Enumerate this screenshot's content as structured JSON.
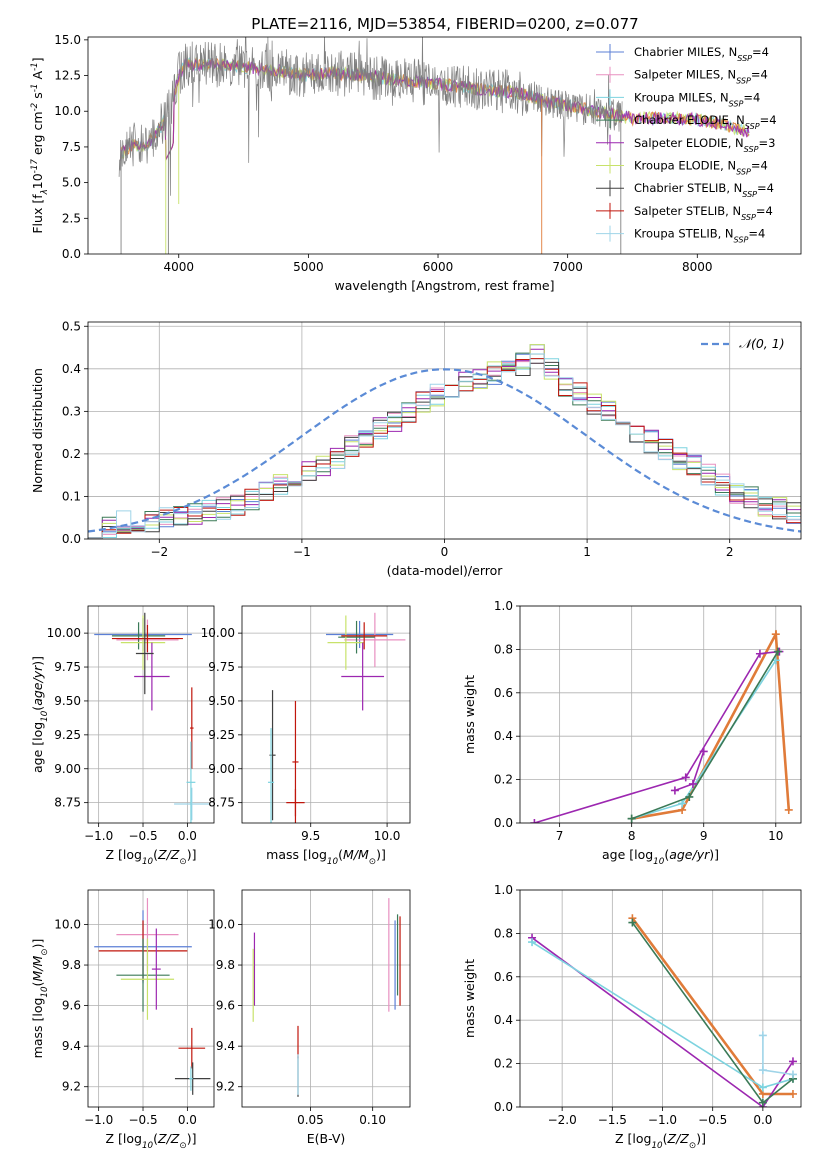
{
  "figure": {
    "title": "PLATE=2116, MJD=53854, FIBERID=0200, z=0.077"
  },
  "colors": {
    "model_series": [
      "#5b7fd6",
      "#e890c0",
      "#7dd3df",
      "#3b7a57",
      "#9c27b0",
      "#c8e26a",
      "#404040",
      "#c0160c",
      "#9fd4e8"
    ],
    "data_spectrum": "#808080",
    "fit_highlight": "#e07b39",
    "gaussian": "#5b8bd6",
    "weights_series": [
      "#e07b39",
      "#9c27b0",
      "#c8e26a",
      "#7dd3df",
      "#3b7a57"
    ]
  },
  "chart_data": [
    {
      "id": "spectrum",
      "type": "line",
      "xlabel": "wavelength [Angstrom, rest frame]",
      "ylabel": "Flux [f$_\\lambda$10$^{-17}$ erg cm$^{-2}$ s$^{-1}$ A$^{-1}$]",
      "xlim": [
        3300,
        8800
      ],
      "ylim": [
        0,
        15.2
      ],
      "xticks": [
        4000,
        5000,
        6000,
        7000,
        8000
      ],
      "yticks": [
        0.0,
        2.5,
        5.0,
        7.5,
        10.0,
        12.5,
        15.0
      ],
      "ytick_labels": [
        "0.0",
        "2.5",
        "5.0",
        "7.5",
        "10.0",
        "12.5",
        "15.0"
      ],
      "grid": false,
      "legend_position": "top-right",
      "legend": [
        {
          "text": "Chabrier MILES, N",
          "sub": "SSP",
          "tail": "=4"
        },
        {
          "text": "Salpeter MILES, N",
          "sub": "SSP",
          "tail": "=4"
        },
        {
          "text": "Kroupa MILES, N",
          "sub": "SSP",
          "tail": "=4"
        },
        {
          "text": "Chabrier ELODIE, N",
          "sub": "SSP",
          "tail": "=4"
        },
        {
          "text": "Salpeter ELODIE, N",
          "sub": "SSP",
          "tail": "=3"
        },
        {
          "text": "Kroupa ELODIE, N",
          "sub": "SSP",
          "tail": "=4"
        },
        {
          "text": "Chabrier STELIB, N",
          "sub": "SSP",
          "tail": "=4"
        },
        {
          "text": "Salpeter STELIB, N",
          "sub": "SSP",
          "tail": "=4"
        },
        {
          "text": "Kroupa STELIB, N",
          "sub": "SSP",
          "tail": "=4"
        }
      ],
      "continuum": [
        [
          3550,
          7.0
        ],
        [
          3650,
          7.6
        ],
        [
          3750,
          7.6
        ],
        [
          3850,
          8.7
        ],
        [
          3950,
          10.5
        ],
        [
          4000,
          12.5
        ],
        [
          4050,
          13.3
        ],
        [
          4200,
          13.3
        ],
        [
          4500,
          13.1
        ],
        [
          4800,
          12.8
        ],
        [
          5000,
          12.5
        ],
        [
          5200,
          12.7
        ],
        [
          5500,
          12.4
        ],
        [
          5800,
          12.1
        ],
        [
          6000,
          11.9
        ],
        [
          6300,
          11.6
        ],
        [
          6600,
          11.3
        ],
        [
          6900,
          10.6
        ],
        [
          7200,
          10.0
        ],
        [
          7500,
          9.5
        ],
        [
          7800,
          9.5
        ],
        [
          8000,
          9.4
        ],
        [
          8200,
          9.1
        ],
        [
          8400,
          8.5
        ]
      ]
    },
    {
      "id": "residuals",
      "type": "line",
      "xlabel": "(data-model)/error",
      "ylabel": "Normed distribution",
      "xlim": [
        -2.5,
        2.5
      ],
      "ylim": [
        0,
        0.51
      ],
      "xticks": [
        -2,
        -1,
        0,
        1,
        2
      ],
      "xtick_labels": [
        "−2",
        "−1",
        "0",
        "1",
        "2"
      ],
      "yticks": [
        0.0,
        0.1,
        0.2,
        0.3,
        0.4,
        0.5
      ],
      "ytick_labels": [
        "0.0",
        "0.1",
        "0.2",
        "0.3",
        "0.4",
        "0.5"
      ],
      "grid": true,
      "legend_position": "top-right",
      "gaussian_label": "𝒩(0, 1)",
      "bin_width": 0.1,
      "bin_start": -2.5,
      "hist_base": [
        0.03,
        0.03,
        0.04,
        0.04,
        0.04,
        0.05,
        0.05,
        0.06,
        0.07,
        0.07,
        0.08,
        0.09,
        0.11,
        0.13,
        0.14,
        0.16,
        0.17,
        0.19,
        0.22,
        0.24,
        0.26,
        0.28,
        0.3,
        0.32,
        0.34,
        0.35,
        0.37,
        0.38,
        0.39,
        0.4,
        0.41,
        0.43,
        0.4,
        0.36,
        0.34,
        0.32,
        0.3,
        0.28,
        0.25,
        0.23,
        0.21,
        0.19,
        0.17,
        0.15,
        0.13,
        0.11,
        0.1,
        0.08,
        0.07,
        0.06,
        0.05,
        0.05,
        0.04,
        0.04,
        0.04,
        0.04
      ]
    },
    {
      "id": "age-vs-Z",
      "type": "scatter",
      "xlabel": "Z [log$_{10}$($Z/Z_\\odot$)]",
      "ylabel": "age  [log$_{10}$($age/yr$)]",
      "xlim": [
        -1.12,
        0.3
      ],
      "ylim": [
        8.6,
        10.2
      ],
      "xticks": [
        -1.0,
        -0.5,
        0.0
      ],
      "xtick_labels": [
        "−1.0",
        "−0.5",
        "0.0"
      ],
      "yticks": [
        8.75,
        9.0,
        9.25,
        9.5,
        9.75,
        10.0
      ],
      "ytick_labels": [
        "8.75",
        "9.00",
        "9.25",
        "9.50",
        "9.75",
        "10.00"
      ],
      "grid": true,
      "points": [
        {
          "x": -0.5,
          "y": 9.99,
          "xerr": 0.55,
          "yerr": 0.12,
          "c": 0
        },
        {
          "x": -0.45,
          "y": 9.95,
          "xerr": 0.35,
          "yerr": 0.15,
          "c": 1
        },
        {
          "x": -0.55,
          "y": 9.98,
          "xerr": 0.3,
          "yerr": 0.1,
          "c": 3
        },
        {
          "x": -0.5,
          "y": 9.93,
          "xerr": 0.25,
          "yerr": 0.2,
          "c": 5
        },
        {
          "x": -0.45,
          "y": 9.96,
          "xerr": 0.4,
          "yerr": 0.1,
          "c": 7
        },
        {
          "x": -0.4,
          "y": 9.68,
          "xerr": 0.2,
          "yerr": 0.25,
          "c": 4
        },
        {
          "x": -0.48,
          "y": 9.85,
          "xerr": 0.1,
          "yerr": 0.3,
          "c": 6
        },
        {
          "x": 0.05,
          "y": 9.3,
          "xerr": 0.02,
          "yerr": 0.3,
          "c": 7
        },
        {
          "x": 0.05,
          "y": 8.74,
          "xerr": 0.2,
          "yerr": 0.12,
          "c": 8
        },
        {
          "x": 0.04,
          "y": 8.9,
          "xerr": 0.05,
          "yerr": 0.3,
          "c": 2
        }
      ]
    },
    {
      "id": "age-vs-mass",
      "type": "scatter",
      "xlabel": "mass [log$_{10}$($M/M_\\odot$)]",
      "xlim": [
        9.05,
        10.15
      ],
      "ylim": [
        8.6,
        10.2
      ],
      "xticks": [
        9.5,
        10.0
      ],
      "xtick_labels": [
        "9.5",
        "10.0"
      ],
      "yticks": [
        8.75,
        9.0,
        9.25,
        9.5,
        9.75,
        10.0
      ],
      "ytick_labels": [
        "8.75",
        "9.00",
        "9.25",
        "9.50",
        "9.75",
        "10.00"
      ],
      "grid": true,
      "points": [
        {
          "x": 9.82,
          "y": 9.99,
          "xerr": 0.22,
          "yerr": 0.1,
          "c": 0
        },
        {
          "x": 9.92,
          "y": 9.95,
          "xerr": 0.2,
          "yerr": 0.2,
          "c": 1
        },
        {
          "x": 9.8,
          "y": 9.97,
          "xerr": 0.12,
          "yerr": 0.12,
          "c": 3
        },
        {
          "x": 9.73,
          "y": 9.93,
          "xerr": 0.12,
          "yerr": 0.2,
          "c": 5
        },
        {
          "x": 9.85,
          "y": 9.98,
          "xerr": 0.15,
          "yerr": 0.1,
          "c": 7
        },
        {
          "x": 9.84,
          "y": 9.68,
          "xerr": 0.14,
          "yerr": 0.25,
          "c": 4
        },
        {
          "x": 9.25,
          "y": 9.1,
          "xerr": 0.02,
          "yerr": 0.48,
          "c": 6
        },
        {
          "x": 9.4,
          "y": 8.75,
          "xerr": 0.06,
          "yerr": 0.1,
          "c": 7
        },
        {
          "x": 9.4,
          "y": 9.05,
          "xerr": 0.02,
          "yerr": 0.45,
          "c": 7
        },
        {
          "x": 9.24,
          "y": 8.9,
          "xerr": 0.02,
          "yerr": 0.4,
          "c": 2
        }
      ]
    },
    {
      "id": "weights-vs-age",
      "type": "line",
      "xlabel": "age  [log$_{10}$($age/yr$)]",
      "ylabel": "mass weight",
      "xlim": [
        6.45,
        10.35
      ],
      "ylim": [
        0,
        1.0
      ],
      "xticks": [
        7,
        8,
        9,
        10
      ],
      "xtick_labels": [
        "7",
        "8",
        "9",
        "10"
      ],
      "yticks": [
        0.0,
        0.2,
        0.4,
        0.6,
        0.8,
        1.0
      ],
      "ytick_labels": [
        "0.0",
        "0.2",
        "0.4",
        "0.6",
        "0.8",
        "1.0"
      ],
      "grid": true,
      "series": [
        {
          "c": 0,
          "x": [
            8.0,
            8.7,
            10.0,
            10.18
          ],
          "y": [
            0.02,
            0.06,
            0.87,
            0.06
          ]
        },
        {
          "c": 4,
          "x": [
            6.65,
            8.75,
            9.78,
            10.05
          ],
          "y": [
            0.0,
            0.21,
            0.78,
            0.79
          ]
        },
        {
          "c": 2,
          "x": [
            8.0,
            8.7,
            10.0
          ],
          "y": [
            0.02,
            0.09,
            0.75
          ]
        },
        {
          "c": 3,
          "x": [
            8.0,
            8.8,
            10.03
          ],
          "y": [
            0.02,
            0.12,
            0.79
          ]
        },
        {
          "c": 4,
          "x": [
            8.6,
            8.85,
            9.0
          ],
          "y": [
            0.15,
            0.18,
            0.33
          ]
        }
      ]
    },
    {
      "id": "mass-vs-Z",
      "type": "scatter",
      "xlabel": "Z [log$_{10}$($Z/Z_\\odot$)]",
      "ylabel": "mass [log$_{10}$($M/M_\\odot$)]",
      "xlim": [
        -1.12,
        0.3
      ],
      "ylim": [
        9.1,
        10.17
      ],
      "xticks": [
        -1.0,
        -0.5,
        0.0
      ],
      "xtick_labels": [
        "−1.0",
        "−0.5",
        "0.0"
      ],
      "yticks": [
        9.2,
        9.4,
        9.6,
        9.8,
        10.0
      ],
      "ytick_labels": [
        "9.2",
        "9.4",
        "9.6",
        "9.8",
        "10.0"
      ],
      "grid": true,
      "points": [
        {
          "x": -0.5,
          "y": 9.89,
          "xerr": 0.55,
          "yerr": 0.18,
          "c": 0
        },
        {
          "x": -0.45,
          "y": 9.95,
          "xerr": 0.35,
          "yerr": 0.18,
          "c": 1
        },
        {
          "x": -0.5,
          "y": 9.87,
          "xerr": 0.5,
          "yerr": 0.15,
          "c": 7
        },
        {
          "x": -0.5,
          "y": 9.75,
          "xerr": 0.3,
          "yerr": 0.18,
          "c": 3
        },
        {
          "x": -0.45,
          "y": 9.73,
          "xerr": 0.3,
          "yerr": 0.2,
          "c": 5
        },
        {
          "x": -0.35,
          "y": 9.78,
          "xerr": 0.05,
          "yerr": 0.2,
          "c": 4
        },
        {
          "x": 0.05,
          "y": 9.39,
          "xerr": 0.15,
          "yerr": 0.1,
          "c": 7
        },
        {
          "x": 0.06,
          "y": 9.24,
          "xerr": 0.2,
          "yerr": 0.08,
          "c": 6
        },
        {
          "x": 0.04,
          "y": 9.24,
          "xerr": 0.02,
          "yerr": 0.06,
          "c": 2
        }
      ]
    },
    {
      "id": "mass-vs-EBV",
      "type": "scatter",
      "xlabel": "E(B-V)",
      "xlim": [
        -0.005,
        0.13
      ],
      "ylim": [
        9.1,
        10.17
      ],
      "xticks": [
        0.05,
        0.1
      ],
      "xtick_labels": [
        "0.05",
        "0.10"
      ],
      "yticks": [
        9.2,
        9.4,
        9.6,
        9.8,
        10.0
      ],
      "ytick_labels": [
        "9.2",
        "9.4",
        "9.6",
        "9.8",
        "10.0"
      ],
      "grid": true,
      "points": [
        {
          "x": 0.005,
          "y": 9.78,
          "xerr": 0.0,
          "yerr": 0.18,
          "c": 4
        },
        {
          "x": 0.004,
          "y": 9.7,
          "xerr": 0.0,
          "yerr": 0.18,
          "c": 5
        },
        {
          "x": 0.04,
          "y": 9.42,
          "xerr": 0.0,
          "yerr": 0.08,
          "c": 7
        },
        {
          "x": 0.04,
          "y": 9.25,
          "xerr": 0.0,
          "yerr": 0.1,
          "c": 6
        },
        {
          "x": 0.04,
          "y": 9.26,
          "xerr": 0.0,
          "yerr": 0.1,
          "c": 8
        },
        {
          "x": 0.113,
          "y": 9.85,
          "xerr": 0.0,
          "yerr": 0.28,
          "c": 1
        },
        {
          "x": 0.118,
          "y": 9.8,
          "xerr": 0.0,
          "yerr": 0.22,
          "c": 0
        },
        {
          "x": 0.122,
          "y": 9.82,
          "xerr": 0.0,
          "yerr": 0.22,
          "c": 7
        },
        {
          "x": 0.12,
          "y": 9.85,
          "xerr": 0.0,
          "yerr": 0.2,
          "c": 3
        }
      ]
    },
    {
      "id": "weights-vs-Z",
      "type": "line",
      "xlabel": "Z [log$_{10}$($Z/Z_\\odot$)]",
      "ylabel": "mass weight",
      "xlim": [
        -2.42,
        0.38
      ],
      "ylim": [
        0,
        1.0
      ],
      "xticks": [
        -2.0,
        -1.5,
        -1.0,
        -0.5,
        0.0
      ],
      "xtick_labels": [
        "−2.0",
        "−1.5",
        "−1.0",
        "−0.5",
        "0.0"
      ],
      "yticks": [
        0.0,
        0.2,
        0.4,
        0.6,
        0.8,
        1.0
      ],
      "ytick_labels": [
        "0.0",
        "0.2",
        "0.4",
        "0.6",
        "0.8",
        "1.0"
      ],
      "grid": true,
      "series": [
        {
          "c": 0,
          "x": [
            -1.3,
            0.0,
            0.3
          ],
          "y": [
            0.87,
            0.06,
            0.06
          ]
        },
        {
          "c": 4,
          "x": [
            -2.3,
            0.0,
            0.3
          ],
          "y": [
            0.78,
            0.0,
            0.21
          ]
        },
        {
          "c": 2,
          "x": [
            -2.3,
            0.0,
            0.3
          ],
          "y": [
            0.76,
            0.09,
            0.13
          ]
        },
        {
          "c": 3,
          "x": [
            -1.3,
            0.0,
            0.3
          ],
          "y": [
            0.85,
            0.02,
            0.13
          ]
        },
        {
          "c": 8,
          "x": [
            0.0,
            0.0,
            0.3
          ],
          "y": [
            0.33,
            0.17,
            0.15
          ]
        }
      ]
    }
  ]
}
